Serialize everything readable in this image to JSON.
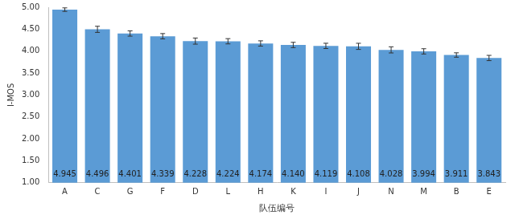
{
  "chart_data": {
    "type": "bar",
    "x_label": "队伍编号",
    "y_label": "I-MOS",
    "categories": [
      "A",
      "C",
      "G",
      "F",
      "D",
      "L",
      "H",
      "K",
      "I",
      "J",
      "N",
      "M",
      "B",
      "E"
    ],
    "values": [
      4.945,
      4.496,
      4.401,
      4.339,
      4.228,
      4.224,
      4.174,
      4.14,
      4.119,
      4.108,
      4.028,
      3.994,
      3.911,
      3.843
    ],
    "value_labels": [
      "4.945",
      "4.496",
      "4.401",
      "4.339",
      "4.228",
      "4.224",
      "4.174",
      "4.140",
      "4.119",
      "4.108",
      "4.028",
      "3.994",
      "3.911",
      "3.843"
    ],
    "errors": [
      0.04,
      0.07,
      0.06,
      0.06,
      0.07,
      0.06,
      0.06,
      0.06,
      0.06,
      0.07,
      0.07,
      0.06,
      0.05,
      0.06
    ],
    "color": "#5b9bd5",
    "ylim": [
      1,
      5
    ],
    "yticks": [
      {
        "value": 1,
        "label": "1.00"
      },
      {
        "value": 1.5,
        "label": "1.50"
      },
      {
        "value": 2,
        "label": "2.00"
      },
      {
        "value": 2.5,
        "label": "2.50"
      },
      {
        "value": 3,
        "label": "3.00"
      },
      {
        "value": 3.5,
        "label": "3.50"
      },
      {
        "value": 4,
        "label": "4.00"
      },
      {
        "value": 4.5,
        "label": "4.50"
      },
      {
        "value": 5,
        "label": "5.00"
      }
    ],
    "grid": false,
    "data_labels": true
  }
}
